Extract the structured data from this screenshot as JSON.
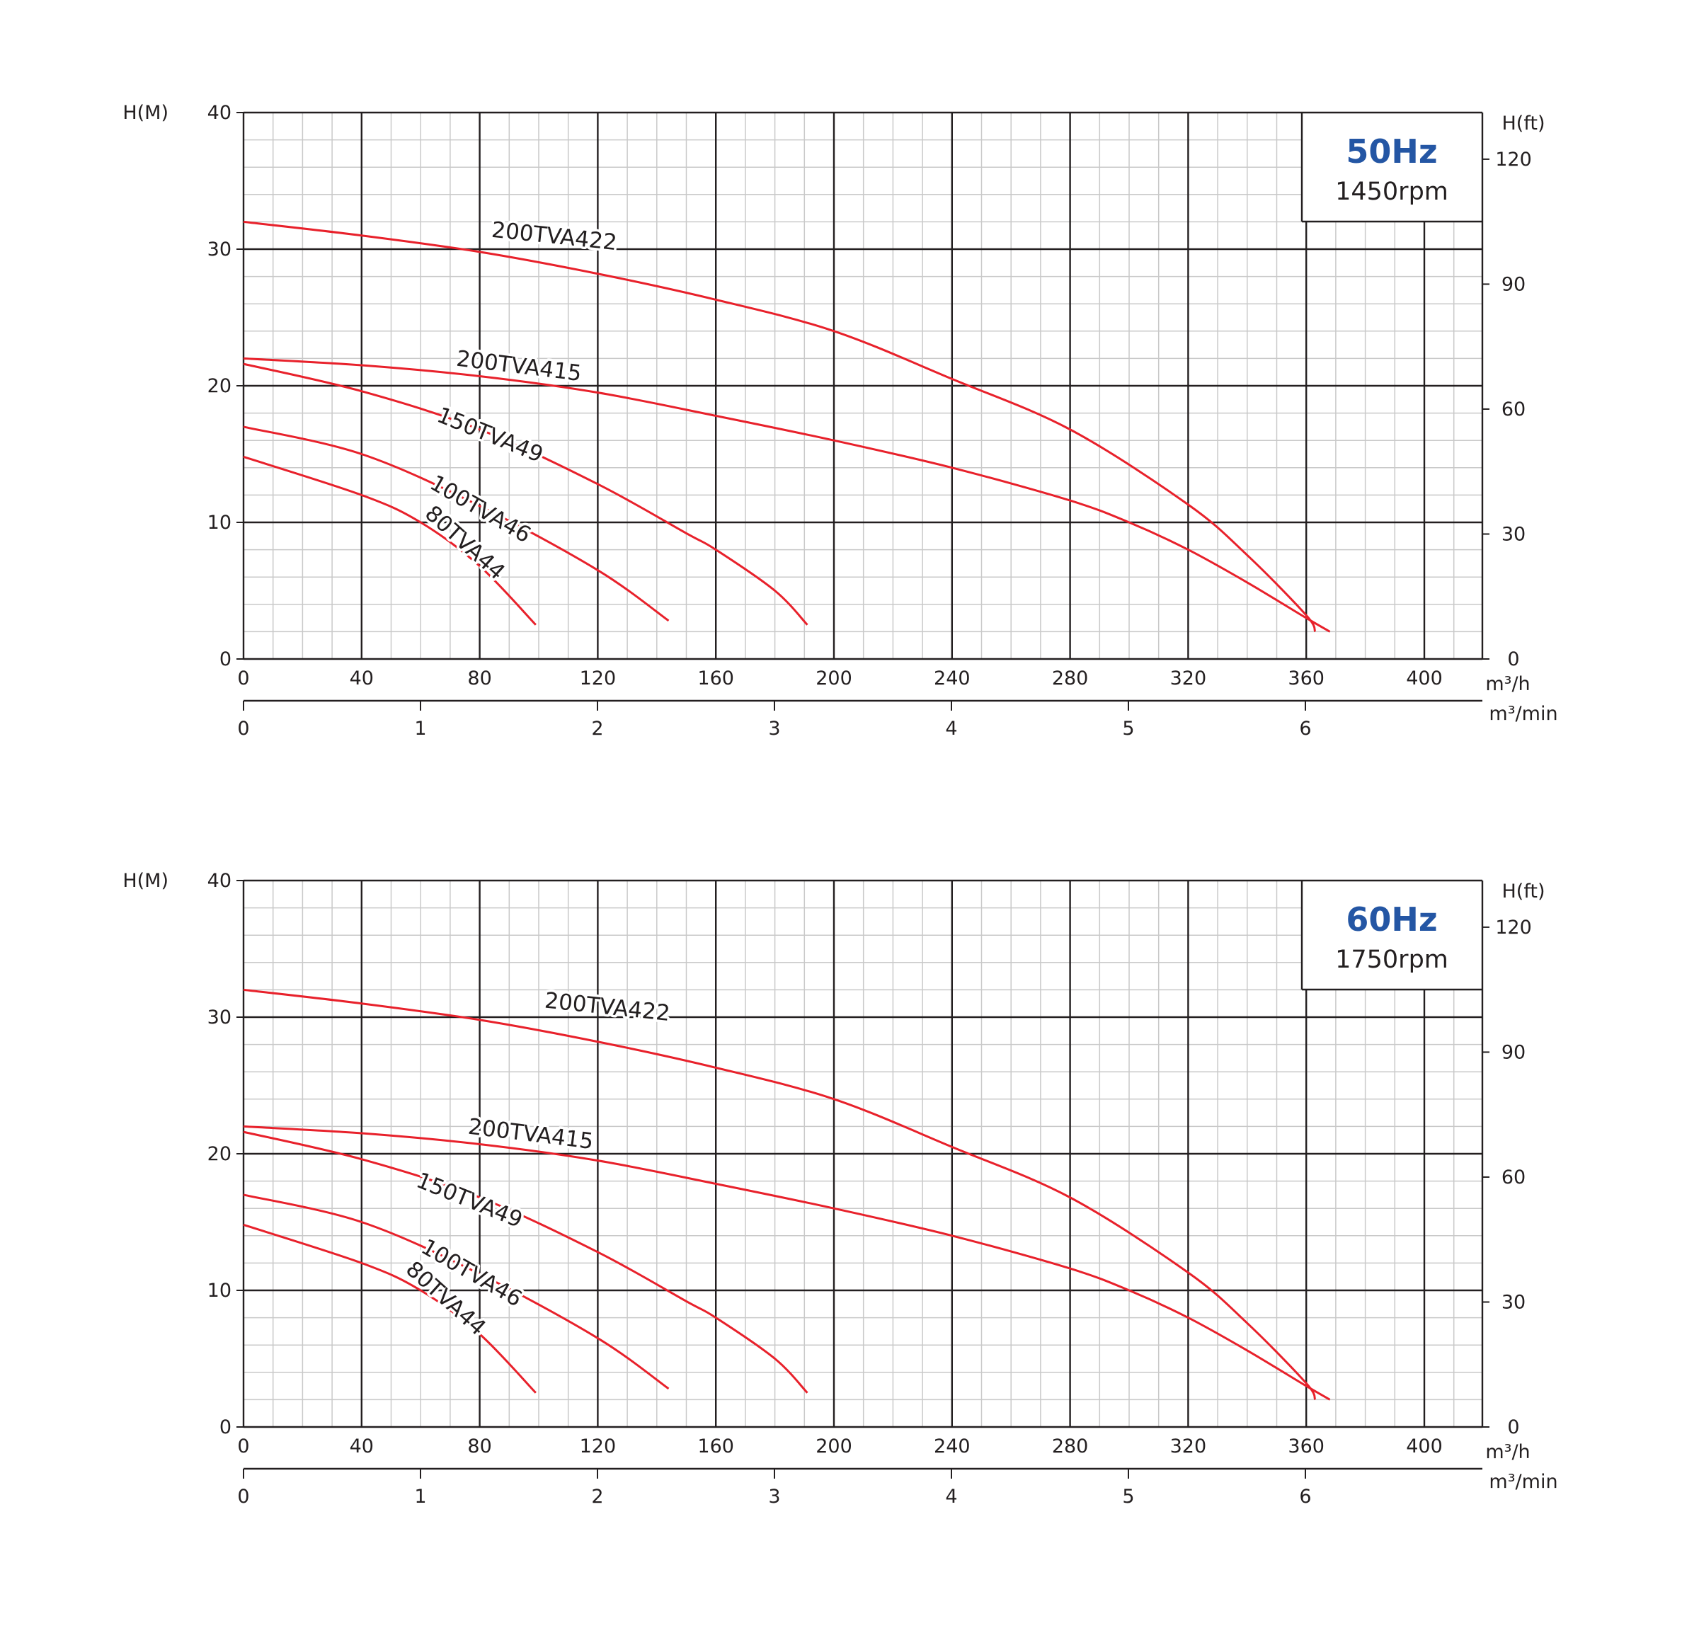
{
  "chart_data": [
    {
      "type": "line",
      "frequency_label": "50Hz",
      "speed_label": "1450rpm",
      "xlabel": "m³/h",
      "x2label": "m³/min",
      "ylabel": "H(M)",
      "y2label": "H(ft)",
      "xlim": [
        0,
        420
      ],
      "ylim": [
        0,
        40
      ],
      "y2lim": [
        0,
        131.2
      ],
      "x_ticks": [
        0,
        40,
        80,
        120,
        160,
        200,
        240,
        280,
        320,
        360,
        400
      ],
      "x2_ticks": [
        0,
        1,
        2,
        3,
        4,
        5,
        6
      ],
      "y_ticks": [
        0,
        10,
        20,
        30,
        40
      ],
      "y2_ticks": [
        0,
        30,
        60,
        90,
        120
      ],
      "grid": true,
      "color": "#e8212b",
      "accent_color": "#2456a4",
      "series": [
        {
          "name": "200TVA422",
          "x": [
            0,
            40,
            80,
            120,
            160,
            200,
            240,
            280,
            320,
            340,
            360,
            363
          ],
          "y": [
            32,
            31,
            29.8,
            28.2,
            26.3,
            24,
            20.5,
            16.8,
            11.3,
            7.6,
            3.2,
            2
          ]
        },
        {
          "name": "200TVA415",
          "x": [
            0,
            40,
            80,
            120,
            160,
            200,
            240,
            280,
            300,
            320,
            340,
            360,
            368
          ],
          "y": [
            22,
            21.5,
            20.7,
            19.5,
            17.8,
            16,
            14,
            11.6,
            10,
            8,
            5.6,
            3,
            2
          ]
        },
        {
          "name": "150TVA49",
          "x": [
            0,
            40,
            80,
            120,
            150,
            160,
            180,
            191
          ],
          "y": [
            21.6,
            19.6,
            16.8,
            12.8,
            9.2,
            8,
            5,
            2.5
          ]
        },
        {
          "name": "100TVA46",
          "x": [
            0,
            40,
            80,
            120,
            144
          ],
          "y": [
            17,
            15,
            11.2,
            6.5,
            2.8
          ]
        },
        {
          "name": "80TVA44",
          "x": [
            0,
            40,
            60,
            80,
            99
          ],
          "y": [
            14.8,
            12,
            10,
            6.8,
            2.5
          ]
        }
      ]
    },
    {
      "type": "line",
      "frequency_label": "60Hz",
      "speed_label": "1750rpm",
      "xlabel": "m³/h",
      "x2label": "m³/min",
      "ylabel": "H(M)",
      "y2label": "H(ft)",
      "xlim": [
        0,
        420
      ],
      "ylim": [
        0,
        40
      ],
      "y2lim": [
        0,
        131.2
      ],
      "x_ticks": [
        0,
        40,
        80,
        120,
        160,
        200,
        240,
        280,
        320,
        360,
        400
      ],
      "x2_ticks": [
        0,
        1,
        2,
        3,
        4,
        5,
        6
      ],
      "y_ticks": [
        0,
        10,
        20,
        30,
        40
      ],
      "y2_ticks": [
        0,
        30,
        60,
        90,
        120
      ],
      "grid": true,
      "color": "#e8212b",
      "accent_color": "#2456a4",
      "series": [
        {
          "name": "200TVA422",
          "x": [
            0,
            40,
            80,
            120,
            160,
            200,
            240,
            280,
            320,
            340,
            360,
            363
          ],
          "y": [
            32,
            31,
            29.8,
            28.2,
            26.3,
            24,
            20.5,
            16.8,
            11.3,
            7.6,
            3.2,
            2
          ]
        },
        {
          "name": "200TVA415",
          "x": [
            0,
            40,
            80,
            120,
            160,
            200,
            240,
            280,
            300,
            320,
            340,
            360,
            368
          ],
          "y": [
            22,
            21.5,
            20.7,
            19.5,
            17.8,
            16,
            14,
            11.6,
            10,
            8,
            5.6,
            3,
            2
          ]
        },
        {
          "name": "150TVA49",
          "x": [
            0,
            40,
            80,
            120,
            150,
            160,
            180,
            191
          ],
          "y": [
            21.6,
            19.6,
            16.8,
            12.8,
            9.2,
            8,
            5,
            2.5
          ]
        },
        {
          "name": "100TVA46",
          "x": [
            0,
            40,
            80,
            120,
            144
          ],
          "y": [
            17,
            15,
            11.2,
            6.5,
            2.8
          ]
        },
        {
          "name": "80TVA44",
          "x": [
            0,
            40,
            60,
            80,
            99
          ],
          "y": [
            14.8,
            12,
            10,
            6.8,
            2.5
          ]
        }
      ]
    }
  ]
}
